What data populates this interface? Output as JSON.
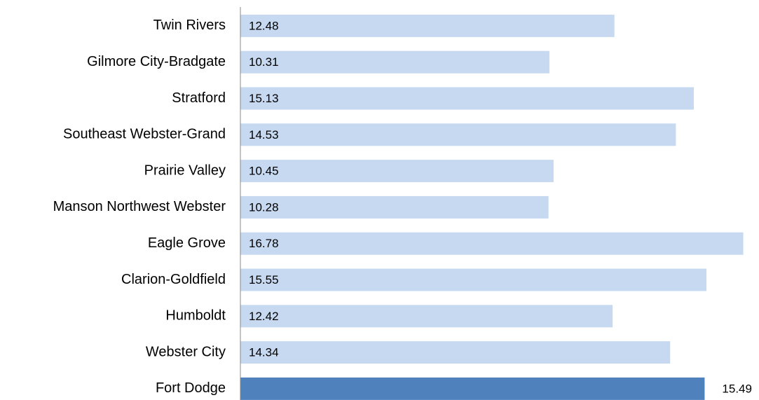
{
  "chart_data": {
    "type": "barh",
    "categories": [
      "Twin Rivers",
      "Gilmore City-Bradgate",
      "Stratford",
      "Southeast Webster-Grand",
      "Prairie Valley",
      "Manson Northwest Webster",
      "Eagle Grove",
      "Clarion-Goldfield",
      "Humboldt",
      "Webster City",
      "Fort Dodge"
    ],
    "values": [
      12.48,
      10.31,
      15.13,
      14.53,
      10.45,
      10.28,
      16.78,
      15.55,
      12.42,
      14.34,
      15.49
    ],
    "colors": [
      "#c6d9f1",
      "#c6d9f1",
      "#c6d9f1",
      "#c6d9f1",
      "#c6d9f1",
      "#c6d9f1",
      "#c6d9f1",
      "#c6d9f1",
      "#c6d9f1",
      "#c6d9f1",
      "#4f81bd"
    ],
    "label_positions": [
      "inside_base",
      "inside_base",
      "inside_base",
      "inside_base",
      "inside_base",
      "inside_base",
      "inside_base",
      "inside_base",
      "inside_base",
      "inside_base",
      "outside_end"
    ],
    "xlim": [
      0,
      17
    ]
  }
}
